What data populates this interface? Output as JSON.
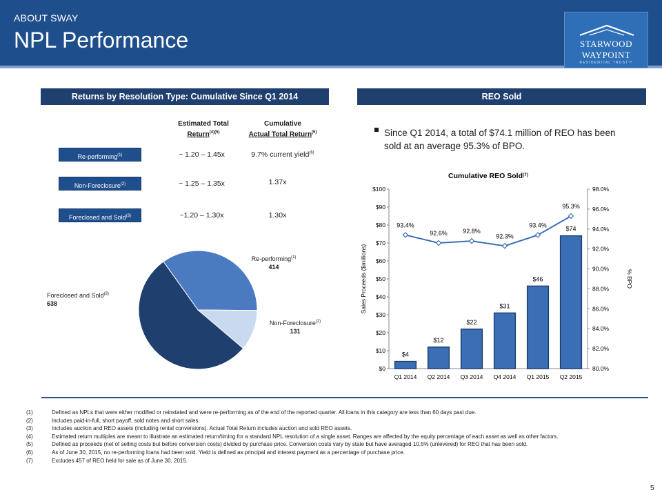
{
  "header": {
    "section": "ABOUT SWAY",
    "title": "NPL Performance",
    "logo": {
      "line1": "STARWOOD",
      "line2": "WAYPOINT",
      "line3": "RESIDENTIAL TRUST™"
    }
  },
  "colors": {
    "header_blue": "#1f4e8c",
    "dark_navy": "#1f3f6e",
    "bar_blue": "#3a6fb5",
    "pie_dark": "#1f3f6e",
    "pie_mid": "#4a7bc0",
    "pie_light": "#c9d9ef"
  },
  "returns_panel": {
    "heading": "Returns by Resolution Type: Cumulative Since Q1 2014",
    "col1_line1": "Estimated Total",
    "col1_line2": "Return",
    "col1_sup": "(4)(5)",
    "col2_line1": "Cumulative",
    "col2_line2": "Actual Total Return",
    "col2_sup": "(5)",
    "rows": [
      {
        "label": "Re-performing",
        "sup": "(1)",
        "estimated": "~ 1.20 – 1.45x",
        "actual": "9.7% current yield",
        "actual_sup": "(6)"
      },
      {
        "label": "Non-Foreclosure",
        "sup": "(2)",
        "estimated": "~ 1.25 – 1.35x",
        "actual": "1.37x",
        "actual_sup": ""
      },
      {
        "label": "Foreclosed and Sold",
        "sup": "(3)",
        "estimated": "~1.20 – 1.30x",
        "actual": "1.30x",
        "actual_sup": ""
      }
    ],
    "pie": [
      {
        "name": "Re-performing",
        "sup": "(1)",
        "value": 414
      },
      {
        "name": "Non-Foreclosure",
        "sup": "(2)",
        "value": 131
      },
      {
        "name": "Foreclosed and Sold",
        "sup": "(3)",
        "value": 638
      }
    ]
  },
  "reo_panel": {
    "heading": "REO Sold",
    "bullet": "Since Q1 2014, a total of $74.1 million of REO has been sold at an average 95.3% of BPO."
  },
  "chart_data": {
    "type": "bar",
    "title": "Cumulative REO Sold",
    "title_sup": "(7)",
    "categories": [
      "Q1 2014",
      "Q2 2014",
      "Q3 2014",
      "Q4 2014",
      "Q1 2015",
      "Q2 2015"
    ],
    "series": [
      {
        "type": "bar",
        "axis": "left",
        "values": [
          4,
          12,
          22,
          31,
          46,
          74
        ],
        "labels": [
          "$4",
          "$12",
          "$22",
          "$31",
          "$46",
          "$74"
        ]
      },
      {
        "type": "line",
        "axis": "right",
        "values": [
          93.4,
          92.6,
          92.8,
          92.3,
          93.4,
          95.3
        ],
        "labels": [
          "93.4%",
          "92.6%",
          "92.8%",
          "92.3%",
          "93.4%",
          "95.3%"
        ]
      }
    ],
    "ylabel": "Sales Proceeds ($millions)",
    "y2label": "% BPO",
    "ylim": [
      0,
      100
    ],
    "y2lim": [
      80,
      98
    ],
    "yticks": [
      "$0",
      "$10",
      "$20",
      "$30",
      "$40",
      "$50",
      "$60",
      "$70",
      "$80",
      "$90",
      "$100"
    ],
    "y2ticks": [
      "80.0%",
      "82.0%",
      "84.0%",
      "86.0%",
      "88.0%",
      "90.0%",
      "92.0%",
      "94.0%",
      "96.0%",
      "98.0%"
    ],
    "grid": false,
    "legend": "none"
  },
  "footnotes": [
    {
      "num": "(1)",
      "text": "Defined as NPLs that were either modified or reinstated and were re-performing as of the end of the reported quarter. All loans in this category are less than 60 days past due."
    },
    {
      "num": "(2)",
      "text": "Includes paid-in-full, short payoff, sold notes and short sales."
    },
    {
      "num": "(3)",
      "text": "Includes auction and REO assets (including rental conversions). Actual Total Return includes auction and sold REO assets."
    },
    {
      "num": "(4)",
      "text": "Estimated return multiples are meant to illustrate an estimated return/timing for a standard NPL resolution of a single asset. Ranges are affected by the equity percentage of each asset as well as other factors."
    },
    {
      "num": "(5)",
      "text": "Defined as proceeds (net of selling costs but before conversion costs) divided by purchase price. Conversion costs vary by state but have averaged 10.5% (unlevered) for REO that has been sold."
    },
    {
      "num": "(6)",
      "text": "As of June 30, 2015, no re-performing loans had been sold. Yield is defined as principal and interest payment as a percentage of purchase price."
    },
    {
      "num": "(7)",
      "text": "Excludes 457 of REO held for sale as of June 30, 2015."
    }
  ],
  "page_number": "5"
}
